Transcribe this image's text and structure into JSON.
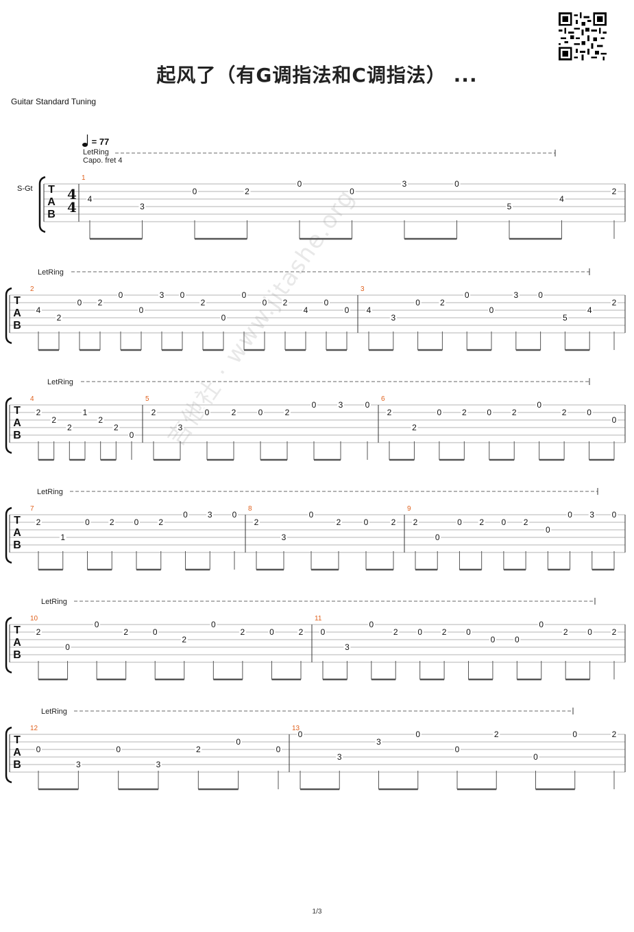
{
  "title": "起风了（有G调指法和C调指法） ...",
  "tuning": "Guitar Standard Tuning",
  "tempo": "= 77",
  "letring_label": "LetRing",
  "capo": "Capo. fret 4",
  "track": "S-Gt",
  "time_signature": [
    "4",
    "4"
  ],
  "tab_letters": [
    "T",
    "A",
    "B"
  ],
  "watermark": "吉他社 · www.jitashe.org",
  "page_number": "1/3",
  "colors": {
    "measure_number": "#e0601c",
    "staff_line": "#9a9a9a",
    "beam": "#555555"
  },
  "measures": [
    {
      "number": "1",
      "notes": [
        {
          "s": 3,
          "f": "4"
        },
        {
          "s": 4,
          "f": "3"
        },
        {
          "s": 2,
          "f": "0"
        },
        {
          "s": 2,
          "f": "2"
        },
        {
          "s": 1,
          "f": "0"
        },
        {
          "s": 2,
          "f": "0"
        },
        {
          "s": 1,
          "f": "3"
        },
        {
          "s": 1,
          "f": "0"
        },
        {
          "s": 4,
          "f": "5"
        },
        {
          "s": 3,
          "f": "4"
        },
        {
          "s": 2,
          "f": "2"
        }
      ]
    },
    {
      "number": "2",
      "notes": [
        {
          "s": 3,
          "f": "4"
        },
        {
          "s": 4,
          "f": "2"
        },
        {
          "s": 2,
          "f": "0"
        },
        {
          "s": 2,
          "f": "2"
        },
        {
          "s": 1,
          "f": "0"
        },
        {
          "s": 3,
          "f": "0"
        },
        {
          "s": 1,
          "f": "3"
        },
        {
          "s": 1,
          "f": "0"
        },
        {
          "s": 2,
          "f": "2"
        },
        {
          "s": 4,
          "f": "0"
        },
        {
          "s": 1,
          "f": "0"
        },
        {
          "s": 2,
          "f": "0"
        },
        {
          "s": 2,
          "f": "2"
        },
        {
          "s": 3,
          "f": "4"
        },
        {
          "s": 2,
          "f": "0"
        },
        {
          "s": 3,
          "f": "0"
        }
      ]
    },
    {
      "number": "3",
      "notes": [
        {
          "s": 3,
          "f": "4"
        },
        {
          "s": 4,
          "f": "3"
        },
        {
          "s": 2,
          "f": "0"
        },
        {
          "s": 2,
          "f": "2"
        },
        {
          "s": 1,
          "f": "0"
        },
        {
          "s": 3,
          "f": "0"
        },
        {
          "s": 1,
          "f": "3"
        },
        {
          "s": 1,
          "f": "0"
        },
        {
          "s": 4,
          "f": "5"
        },
        {
          "s": 3,
          "f": "4"
        },
        {
          "s": 2,
          "f": "2"
        }
      ]
    },
    {
      "number": "4",
      "notes": [
        {
          "s": 2,
          "f": "2"
        },
        {
          "s": 3,
          "f": "2"
        },
        {
          "s": 4,
          "f": "2"
        },
        {
          "s": 2,
          "f": "1"
        },
        {
          "s": 3,
          "f": "2"
        },
        {
          "s": 4,
          "f": "2"
        },
        {
          "s": 5,
          "f": "0"
        }
      ]
    },
    {
      "number": "5",
      "notes": [
        {
          "s": 2,
          "f": "2"
        },
        {
          "s": 4,
          "f": "3"
        },
        {
          "s": 2,
          "f": "0"
        },
        {
          "s": 2,
          "f": "2"
        },
        {
          "s": 2,
          "f": "0"
        },
        {
          "s": 2,
          "f": "2"
        },
        {
          "s": 1,
          "f": "0"
        },
        {
          "s": 1,
          "f": "3"
        },
        {
          "s": 1,
          "f": "0"
        }
      ]
    },
    {
      "number": "6",
      "notes": [
        {
          "s": 2,
          "f": "2"
        },
        {
          "s": 4,
          "f": "2"
        },
        {
          "s": 2,
          "f": "0"
        },
        {
          "s": 2,
          "f": "2"
        },
        {
          "s": 2,
          "f": "0"
        },
        {
          "s": 2,
          "f": "2"
        },
        {
          "s": 1,
          "f": "0"
        },
        {
          "s": 2,
          "f": "2"
        },
        {
          "s": 2,
          "f": "0"
        },
        {
          "s": 3,
          "f": "0"
        }
      ]
    },
    {
      "number": "7",
      "notes": [
        {
          "s": 2,
          "f": "2"
        },
        {
          "s": 4,
          "f": "1"
        },
        {
          "s": 2,
          "f": "0"
        },
        {
          "s": 2,
          "f": "2"
        },
        {
          "s": 2,
          "f": "0"
        },
        {
          "s": 2,
          "f": "2"
        },
        {
          "s": 1,
          "f": "0"
        },
        {
          "s": 1,
          "f": "3"
        },
        {
          "s": 1,
          "f": "0"
        }
      ]
    },
    {
      "number": "8",
      "notes": [
        {
          "s": 2,
          "f": "2"
        },
        {
          "s": 4,
          "f": "3"
        },
        {
          "s": 1,
          "f": "0"
        },
        {
          "s": 2,
          "f": "2"
        },
        {
          "s": 2,
          "f": "0"
        },
        {
          "s": 2,
          "f": "2"
        }
      ]
    },
    {
      "number": "9",
      "notes": [
        {
          "s": 2,
          "f": "2"
        },
        {
          "s": 4,
          "f": "0"
        },
        {
          "s": 2,
          "f": "0"
        },
        {
          "s": 2,
          "f": "2"
        },
        {
          "s": 2,
          "f": "0"
        },
        {
          "s": 2,
          "f": "2"
        },
        {
          "s": 3,
          "f": "0"
        },
        {
          "s": 1,
          "f": "0"
        },
        {
          "s": 1,
          "f": "3"
        },
        {
          "s": 1,
          "f": "0"
        }
      ]
    },
    {
      "number": "10",
      "notes": [
        {
          "s": 2,
          "f": "2"
        },
        {
          "s": 4,
          "f": "0"
        },
        {
          "s": 1,
          "f": "0"
        },
        {
          "s": 2,
          "f": "2"
        },
        {
          "s": 2,
          "f": "0"
        },
        {
          "s": 3,
          "f": "2"
        },
        {
          "s": 1,
          "f": "0"
        },
        {
          "s": 2,
          "f": "2"
        },
        {
          "s": 2,
          "f": "0"
        },
        {
          "s": 2,
          "f": "2"
        }
      ]
    },
    {
      "number": "11",
      "notes": [
        {
          "s": 2,
          "f": "0"
        },
        {
          "s": 4,
          "f": "3"
        },
        {
          "s": 1,
          "f": "0"
        },
        {
          "s": 2,
          "f": "2"
        },
        {
          "s": 2,
          "f": "0"
        },
        {
          "s": 2,
          "f": "2"
        },
        {
          "s": 2,
          "f": "0"
        },
        {
          "s": 3,
          "f": "0"
        },
        {
          "s": 3,
          "f": "0"
        },
        {
          "s": 1,
          "f": "0"
        },
        {
          "s": 2,
          "f": "2"
        },
        {
          "s": 2,
          "f": "0"
        },
        {
          "s": 2,
          "f": "2"
        }
      ]
    },
    {
      "number": "12",
      "notes": [
        {
          "s": 3,
          "f": "0"
        },
        {
          "s": 5,
          "f": "3"
        },
        {
          "s": 3,
          "f": "0"
        },
        {
          "s": 5,
          "f": "3"
        },
        {
          "s": 3,
          "f": "2"
        },
        {
          "s": 2,
          "f": "0"
        },
        {
          "s": 3,
          "f": "0"
        }
      ]
    },
    {
      "number": "13",
      "notes": [
        {
          "s": 1,
          "f": "0"
        },
        {
          "s": 4,
          "f": "3"
        },
        {
          "s": 2,
          "f": "3"
        },
        {
          "s": 1,
          "f": "0"
        },
        {
          "s": 3,
          "f": "0"
        },
        {
          "s": 1,
          "f": "2"
        },
        {
          "s": 4,
          "f": "0"
        },
        {
          "s": 1,
          "f": "0"
        },
        {
          "s": 1,
          "f": "2"
        }
      ]
    }
  ]
}
